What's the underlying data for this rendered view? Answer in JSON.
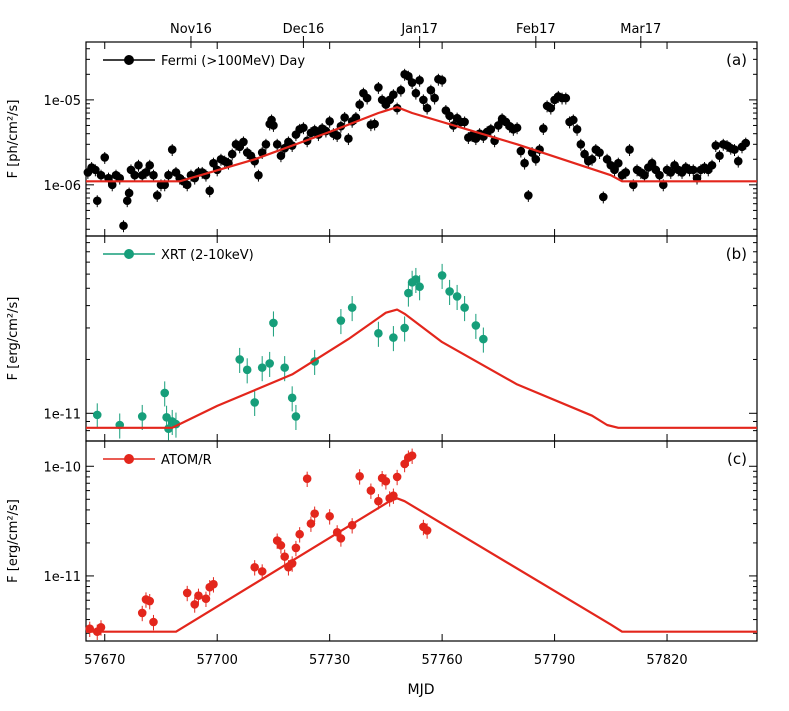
{
  "colors": {
    "model": "#e3261c",
    "fermi": "#000000",
    "xrt": "#169e7a",
    "atom": "#e3261c"
  },
  "x_axis": {
    "label": "MJD",
    "range": [
      57665,
      57844
    ],
    "ticks": [
      {
        "v": 57670,
        "t": "57670"
      },
      {
        "v": 57700,
        "t": "57700"
      },
      {
        "v": 57730,
        "t": "57730"
      },
      {
        "v": 57760,
        "t": "57760"
      },
      {
        "v": 57790,
        "t": "57790"
      },
      {
        "v": 57820,
        "t": "57820"
      }
    ],
    "top_ticks": [
      {
        "v": 57693,
        "t": "Nov16"
      },
      {
        "v": 57723,
        "t": "Dec16"
      },
      {
        "v": 57754,
        "t": "Jan17"
      },
      {
        "v": 57785,
        "t": "Feb17"
      },
      {
        "v": 57813,
        "t": "Mar17"
      }
    ]
  },
  "chart_data": [
    {
      "type": "scatter",
      "scale": "log",
      "panel_label": "(a)",
      "ylabel": "F [ph/cm²/s]",
      "legend": "Fermi (>100MeV) Day",
      "ylim": [
        2.5e-07,
        4.8e-05
      ],
      "ticks": [
        {
          "v": 1e-06,
          "t": "1e-06"
        },
        {
          "v": 1e-05,
          "t": "1e-05"
        }
      ],
      "model": {
        "x": [
          57665,
          57690,
          57710,
          57730,
          57743,
          57748,
          57752,
          57780,
          57805,
          57808,
          57844
        ],
        "y": [
          1.1e-06,
          1.1e-06,
          2e-06,
          4.2e-06,
          7e-06,
          8.2e-06,
          7e-06,
          3e-06,
          1.3e-06,
          1.1e-06,
          1.1e-06
        ]
      },
      "points": [
        [
          57665.5,
          1.4e-06
        ],
        [
          57666.5,
          1.6e-06
        ],
        [
          57667.5,
          1.5e-06
        ],
        [
          57668,
          6.5e-07
        ],
        [
          57669,
          1.3e-06
        ],
        [
          57670,
          2.1e-06
        ],
        [
          57671,
          1.2e-06
        ],
        [
          57672,
          1e-06
        ],
        [
          57673,
          1.3e-06
        ],
        [
          57674,
          1.2e-06
        ],
        [
          57675,
          3.3e-07
        ],
        [
          57676,
          6.5e-07
        ],
        [
          57676.5,
          8e-07
        ],
        [
          57677,
          1.5e-06
        ],
        [
          57678,
          1.3e-06
        ],
        [
          57679,
          1.7e-06
        ],
        [
          57680,
          1.3e-06
        ],
        [
          57681,
          1.4e-06
        ],
        [
          57682,
          1.7e-06
        ],
        [
          57683,
          1.3e-06
        ],
        [
          57684,
          7.5e-07
        ],
        [
          57685,
          1e-06
        ],
        [
          57686,
          1e-06
        ],
        [
          57687,
          1.3e-06
        ],
        [
          57688,
          2.6e-06
        ],
        [
          57689,
          1.4e-06
        ],
        [
          57690,
          1.2e-06
        ],
        [
          57691,
          1.1e-06
        ],
        [
          57692,
          1e-06
        ],
        [
          57693,
          1.3e-06
        ],
        [
          57694,
          1.2e-06
        ],
        [
          57695,
          1.4e-06
        ],
        [
          57696,
          1.4e-06
        ],
        [
          57697,
          1.3e-06
        ],
        [
          57698,
          8.5e-07
        ],
        [
          57699,
          1.8e-06
        ],
        [
          57700,
          1.5e-06
        ],
        [
          57701,
          2e-06
        ],
        [
          57702,
          1.9e-06
        ],
        [
          57703,
          1.8e-06
        ],
        [
          57704,
          2.3e-06
        ],
        [
          57705,
          3e-06
        ],
        [
          57706,
          2.8e-06
        ],
        [
          57707,
          3.2e-06
        ],
        [
          57708,
          2.4e-06
        ],
        [
          57709,
          2.2e-06
        ],
        [
          57710,
          1.9e-06
        ],
        [
          57711,
          1.3e-06
        ],
        [
          57712,
          2.4e-06
        ],
        [
          57713,
          3e-06
        ],
        [
          57714,
          5.2e-06
        ],
        [
          57714.5,
          5.8e-06
        ],
        [
          57715,
          5e-06
        ],
        [
          57716,
          3e-06
        ],
        [
          57717,
          2.2e-06
        ],
        [
          57718,
          2.7e-06
        ],
        [
          57719,
          3.2e-06
        ],
        [
          57720,
          2.9e-06
        ],
        [
          57721,
          3.9e-06
        ],
        [
          57722,
          4.5e-06
        ],
        [
          57723,
          4.7e-06
        ],
        [
          57724,
          3.3e-06
        ],
        [
          57725,
          4.1e-06
        ],
        [
          57726,
          4.4e-06
        ],
        [
          57727,
          3.9e-06
        ],
        [
          57728,
          4.6e-06
        ],
        [
          57729,
          4.3e-06
        ],
        [
          57730,
          5.6e-06
        ],
        [
          57731,
          4e-06
        ],
        [
          57732,
          3.8e-06
        ],
        [
          57733,
          4.9e-06
        ],
        [
          57734,
          6.2e-06
        ],
        [
          57735,
          3.5e-06
        ],
        [
          57736,
          5.6e-06
        ],
        [
          57737,
          6.2e-06
        ],
        [
          57738,
          8.8e-06
        ],
        [
          57739,
          1.2e-05
        ],
        [
          57740,
          1.05e-05
        ],
        [
          57741,
          5.1e-06
        ],
        [
          57742,
          5.2e-06
        ],
        [
          57743,
          1.4e-05
        ],
        [
          57744,
          1e-05
        ],
        [
          57745,
          8.8e-06
        ],
        [
          57746,
          1e-05
        ],
        [
          57747,
          1.15e-05
        ],
        [
          57748,
          8e-06
        ],
        [
          57749,
          1.3e-05
        ],
        [
          57750,
          2e-05
        ],
        [
          57751,
          1.9e-05
        ],
        [
          57752,
          1.6e-05
        ],
        [
          57753,
          1.2e-05
        ],
        [
          57754,
          1.7e-05
        ],
        [
          57755,
          1e-05
        ],
        [
          57756,
          8e-06
        ],
        [
          57757,
          1.3e-05
        ],
        [
          57758,
          1.05e-05
        ],
        [
          57759,
          1.75e-05
        ],
        [
          57760,
          1.7e-05
        ],
        [
          57761,
          7.5e-06
        ],
        [
          57762,
          6.5e-06
        ],
        [
          57763,
          5e-06
        ],
        [
          57764,
          6.1e-06
        ],
        [
          57765,
          5.5e-06
        ],
        [
          57766,
          5.5e-06
        ],
        [
          57767,
          3.6e-06
        ],
        [
          57768,
          3.8e-06
        ],
        [
          57769,
          3.5e-06
        ],
        [
          57770,
          4e-06
        ],
        [
          57771,
          3.7e-06
        ],
        [
          57772,
          4.2e-06
        ],
        [
          57773,
          4.5e-06
        ],
        [
          57774,
          3.3e-06
        ],
        [
          57775,
          5e-06
        ],
        [
          57776,
          6e-06
        ],
        [
          57777,
          5.5e-06
        ],
        [
          57778,
          4.9e-06
        ],
        [
          57779,
          4.5e-06
        ],
        [
          57780,
          4.7e-06
        ],
        [
          57781,
          2.5e-06
        ],
        [
          57782,
          1.8e-06
        ],
        [
          57783,
          7.5e-07
        ],
        [
          57784,
          2.4e-06
        ],
        [
          57785,
          2e-06
        ],
        [
          57786,
          2.6e-06
        ],
        [
          57787,
          4.6e-06
        ],
        [
          57788,
          8.5e-06
        ],
        [
          57789,
          8e-06
        ],
        [
          57790,
          1e-05
        ],
        [
          57791,
          1.1e-05
        ],
        [
          57792,
          1.05e-05
        ],
        [
          57793,
          1.05e-05
        ],
        [
          57794,
          5.5e-06
        ],
        [
          57795,
          5.8e-06
        ],
        [
          57796,
          4.5e-06
        ],
        [
          57797,
          3e-06
        ],
        [
          57798,
          2.3e-06
        ],
        [
          57799,
          1.9e-06
        ],
        [
          57800,
          2e-06
        ],
        [
          57801,
          2.6e-06
        ],
        [
          57802,
          2.4e-06
        ],
        [
          57803,
          7.2e-07
        ],
        [
          57804,
          2e-06
        ],
        [
          57805,
          1.7e-06
        ],
        [
          57806,
          1.5e-06
        ],
        [
          57807,
          1.8e-06
        ],
        [
          57808,
          1.3e-06
        ],
        [
          57809,
          1.4e-06
        ],
        [
          57810,
          2.6e-06
        ],
        [
          57811,
          1e-06
        ],
        [
          57812,
          1.5e-06
        ],
        [
          57813,
          1.4e-06
        ],
        [
          57814,
          1.3e-06
        ],
        [
          57815,
          1.6e-06
        ],
        [
          57816,
          1.8e-06
        ],
        [
          57817,
          1.5e-06
        ],
        [
          57818,
          1.3e-06
        ],
        [
          57819,
          1e-06
        ],
        [
          57820,
          1.5e-06
        ],
        [
          57821,
          1.4e-06
        ],
        [
          57822,
          1.7e-06
        ],
        [
          57823,
          1.5e-06
        ],
        [
          57824,
          1.4e-06
        ],
        [
          57825,
          1.6e-06
        ],
        [
          57826,
          1.5e-06
        ],
        [
          57827,
          1.5e-06
        ],
        [
          57828,
          1.2e-06
        ],
        [
          57829,
          1.5e-06
        ],
        [
          57830,
          1.6e-06
        ],
        [
          57831,
          1.5e-06
        ],
        [
          57832,
          1.7e-06
        ],
        [
          57833,
          2.9e-06
        ],
        [
          57834,
          2.2e-06
        ],
        [
          57835,
          3e-06
        ],
        [
          57836,
          2.9e-06
        ],
        [
          57837,
          2.7e-06
        ],
        [
          57838,
          2.6e-06
        ],
        [
          57839,
          1.9e-06
        ],
        [
          57840,
          2.8e-06
        ],
        [
          57841,
          3.1e-06
        ]
      ]
    },
    {
      "type": "scatter",
      "scale": "log",
      "panel_label": "(b)",
      "ylabel": "F [erg/cm²/s]",
      "legend": "XRT (2-10keV)",
      "ylim": [
        7e-12,
        9.8e-11
      ],
      "ticks": [
        {
          "v": 1e-11,
          "t": "1e-11"
        }
      ],
      "model": {
        "x": [
          57665,
          57688,
          57700,
          57720,
          57735,
          57745,
          57748,
          57750,
          57760,
          57780,
          57800,
          57804,
          57807,
          57844
        ],
        "y": [
          8.3e-12,
          8.3e-12,
          1.1e-11,
          1.65e-11,
          2.6e-11,
          3.65e-11,
          3.8e-11,
          3.6e-11,
          2.5e-11,
          1.45e-11,
          9.7e-12,
          8.6e-12,
          8.3e-12,
          8.3e-12
        ]
      },
      "points": [
        [
          57668,
          9.8e-12
        ],
        [
          57674,
          8.6e-12
        ],
        [
          57680,
          9.6e-12
        ],
        [
          57686,
          1.3e-11
        ],
        [
          57686.5,
          9.5e-12
        ],
        [
          57687,
          8.2e-12
        ],
        [
          57688,
          9e-12
        ],
        [
          57689,
          8.7e-12
        ],
        [
          57706,
          2e-11
        ],
        [
          57708,
          1.75e-11
        ],
        [
          57710,
          1.15e-11
        ],
        [
          57712,
          1.8e-11
        ],
        [
          57714,
          1.9e-11
        ],
        [
          57715,
          3.2e-11
        ],
        [
          57718,
          1.8e-11
        ],
        [
          57720,
          1.22e-11
        ],
        [
          57721,
          9.6e-12
        ],
        [
          57726,
          1.95e-11
        ],
        [
          57733,
          3.3e-11
        ],
        [
          57736,
          3.9e-11
        ],
        [
          57743,
          2.8e-11
        ],
        [
          57747,
          2.65e-11
        ],
        [
          57750,
          3e-11
        ],
        [
          57751,
          4.7e-11
        ],
        [
          57752,
          5.4e-11
        ],
        [
          57753,
          5.6e-11
        ],
        [
          57754,
          5.1e-11
        ],
        [
          57760,
          5.9e-11
        ],
        [
          57762,
          4.8e-11
        ],
        [
          57764,
          4.5e-11
        ],
        [
          57766,
          3.9e-11
        ],
        [
          57769,
          3.1e-11
        ],
        [
          57771,
          2.6e-11
        ]
      ]
    },
    {
      "type": "scatter",
      "scale": "log",
      "panel_label": "(c)",
      "ylabel": "F [erg/cm²/s]",
      "legend": "ATOM/R",
      "ylim": [
        2.55e-12,
        1.7e-10
      ],
      "ticks": [
        {
          "v": 1e-11,
          "t": "1e-11"
        },
        {
          "v": 1e-10,
          "t": "1e-10"
        }
      ],
      "model": {
        "x": [
          57665,
          57689,
          57746,
          57748,
          57750,
          57805,
          57808,
          57844
        ],
        "y": [
          3.1e-12,
          3.1e-12,
          4.8e-11,
          5.1e-11,
          4.8e-11,
          3.6e-12,
          3.1e-12,
          3.1e-12
        ]
      },
      "points": [
        [
          57666,
          3.3e-12
        ],
        [
          57668,
          3.1e-12
        ],
        [
          57669,
          3.4e-12
        ],
        [
          57680,
          4.6e-12
        ],
        [
          57681,
          6.1e-12
        ],
        [
          57682,
          5.9e-12
        ],
        [
          57683,
          3.8e-12
        ],
        [
          57692,
          7e-12
        ],
        [
          57694,
          5.5e-12
        ],
        [
          57695,
          6.6e-12
        ],
        [
          57697,
          6.2e-12
        ],
        [
          57698,
          7.9e-12
        ],
        [
          57699,
          8.4e-12
        ],
        [
          57710,
          1.2e-11
        ],
        [
          57712,
          1.1e-11
        ],
        [
          57716,
          2.1e-11
        ],
        [
          57717,
          1.9e-11
        ],
        [
          57718,
          1.5e-11
        ],
        [
          57719,
          1.2e-11
        ],
        [
          57720,
          1.3e-11
        ],
        [
          57721,
          1.8e-11
        ],
        [
          57722,
          2.4e-11
        ],
        [
          57724,
          7.7e-11
        ],
        [
          57725,
          3e-11
        ],
        [
          57726,
          3.7e-11
        ],
        [
          57730,
          3.5e-11
        ],
        [
          57732,
          2.5e-11
        ],
        [
          57733,
          2.2e-11
        ],
        [
          57736,
          2.9e-11
        ],
        [
          57738,
          8.1e-11
        ],
        [
          57741,
          6e-11
        ],
        [
          57743,
          4.8e-11
        ],
        [
          57744,
          7.8e-11
        ],
        [
          57745,
          7.3e-11
        ],
        [
          57746,
          5.1e-11
        ],
        [
          57747,
          5.4e-11
        ],
        [
          57748,
          8e-11
        ],
        [
          57750,
          1.05e-10
        ],
        [
          57751,
          1.2e-10
        ],
        [
          57752,
          1.25e-10
        ],
        [
          57755,
          2.8e-11
        ],
        [
          57756,
          2.6e-11
        ]
      ]
    }
  ]
}
